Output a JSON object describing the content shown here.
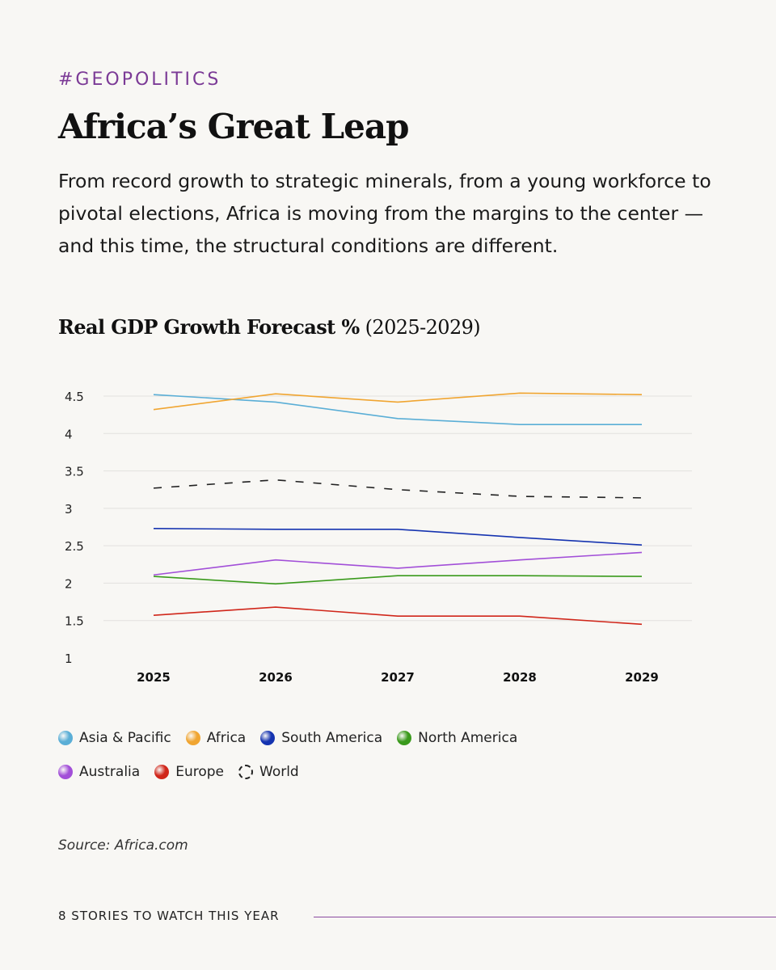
{
  "header": {
    "tag": "#GEOPOLITICS",
    "title": "Africa’s Great Leap",
    "subtitle": "From record growth to strategic minerals, from a young workforce to pivotal elections, Africa is moving from the margins to the center — and this time, the structural conditions are different."
  },
  "chart_heading": {
    "bold": "Real GDP Growth Forecast %",
    "light": " (2025-2029)"
  },
  "chart_data": {
    "type": "line",
    "title": "Real GDP Growth Forecast % (2025-2029)",
    "xlabel": "",
    "ylabel": "",
    "x": [
      "2025",
      "2026",
      "2027",
      "2028",
      "2029"
    ],
    "yticks": [
      "1",
      "1.5",
      "2",
      "2.5",
      "3",
      "3.5",
      "4",
      "4.5"
    ],
    "ylim": [
      1,
      4.5
    ],
    "grid": true,
    "legend_position": "bottom",
    "series": [
      {
        "name": "Asia & Pacific",
        "color": "#5aaed6",
        "dashed": false,
        "values": [
          4.52,
          4.42,
          4.2,
          4.12,
          4.12
        ]
      },
      {
        "name": "Africa",
        "color": "#f0a531",
        "dashed": false,
        "values": [
          4.32,
          4.53,
          4.42,
          4.54,
          4.52
        ]
      },
      {
        "name": "South America",
        "color": "#1533b0",
        "dashed": false,
        "values": [
          2.73,
          2.72,
          2.72,
          2.61,
          2.51
        ]
      },
      {
        "name": "North America",
        "color": "#3a9a1c",
        "dashed": false,
        "values": [
          2.09,
          1.99,
          2.1,
          2.1,
          2.09
        ]
      },
      {
        "name": "Australia",
        "color": "#a24fd8",
        "dashed": false,
        "values": [
          2.11,
          2.31,
          2.2,
          2.31,
          2.41
        ]
      },
      {
        "name": "Europe",
        "color": "#d0261a",
        "dashed": false,
        "values": [
          1.57,
          1.68,
          1.56,
          1.56,
          1.45
        ]
      },
      {
        "name": "World",
        "color": "#222222",
        "dashed": true,
        "values": [
          3.27,
          3.38,
          3.25,
          3.16,
          3.14
        ]
      }
    ]
  },
  "legend": {
    "rows": [
      [
        {
          "label": "Asia & Pacific",
          "color": "#5aaed6",
          "dashed": false
        },
        {
          "label": "Africa",
          "color": "#f0a531",
          "dashed": false
        },
        {
          "label": "South America",
          "color": "#1533b0",
          "dashed": false
        },
        {
          "label": "North America",
          "color": "#3a9a1c",
          "dashed": false
        }
      ],
      [
        {
          "label": "Australia",
          "color": "#a24fd8",
          "dashed": false
        },
        {
          "label": "Europe",
          "color": "#d0261a",
          "dashed": false
        },
        {
          "label": "World",
          "color": "#222222",
          "dashed": true
        }
      ]
    ]
  },
  "source": "Source: Africa.com",
  "footer": "8 STORIES TO WATCH THIS YEAR",
  "colors": {
    "accent": "#7b3a96",
    "background": "#f8f7f4",
    "grid": "#e2e1de"
  }
}
